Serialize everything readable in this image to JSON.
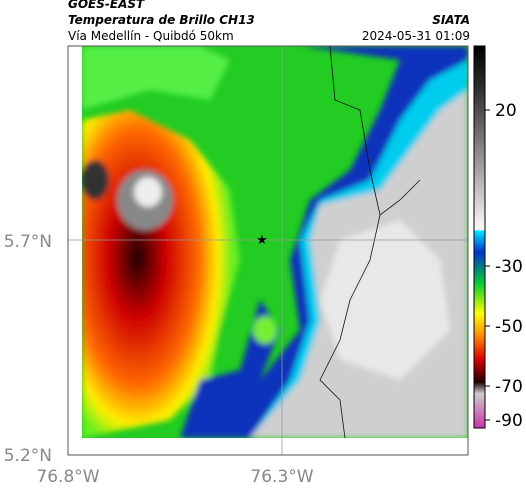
{
  "header": {
    "title": "GOES-EAST",
    "subtitle": "Temperatura de Brillo CH13",
    "route": "Vía Medellín - Quibdó 50km",
    "source": "SIATA",
    "datetime": "2024-05-31 01:09"
  },
  "axes": {
    "lat": [
      "5.7°N",
      "5.2°N"
    ],
    "lon": [
      "76.8°W",
      "76.3°W"
    ]
  },
  "colorbar": {
    "ticks": [
      20,
      -30,
      -50,
      -70,
      -90
    ]
  }
}
